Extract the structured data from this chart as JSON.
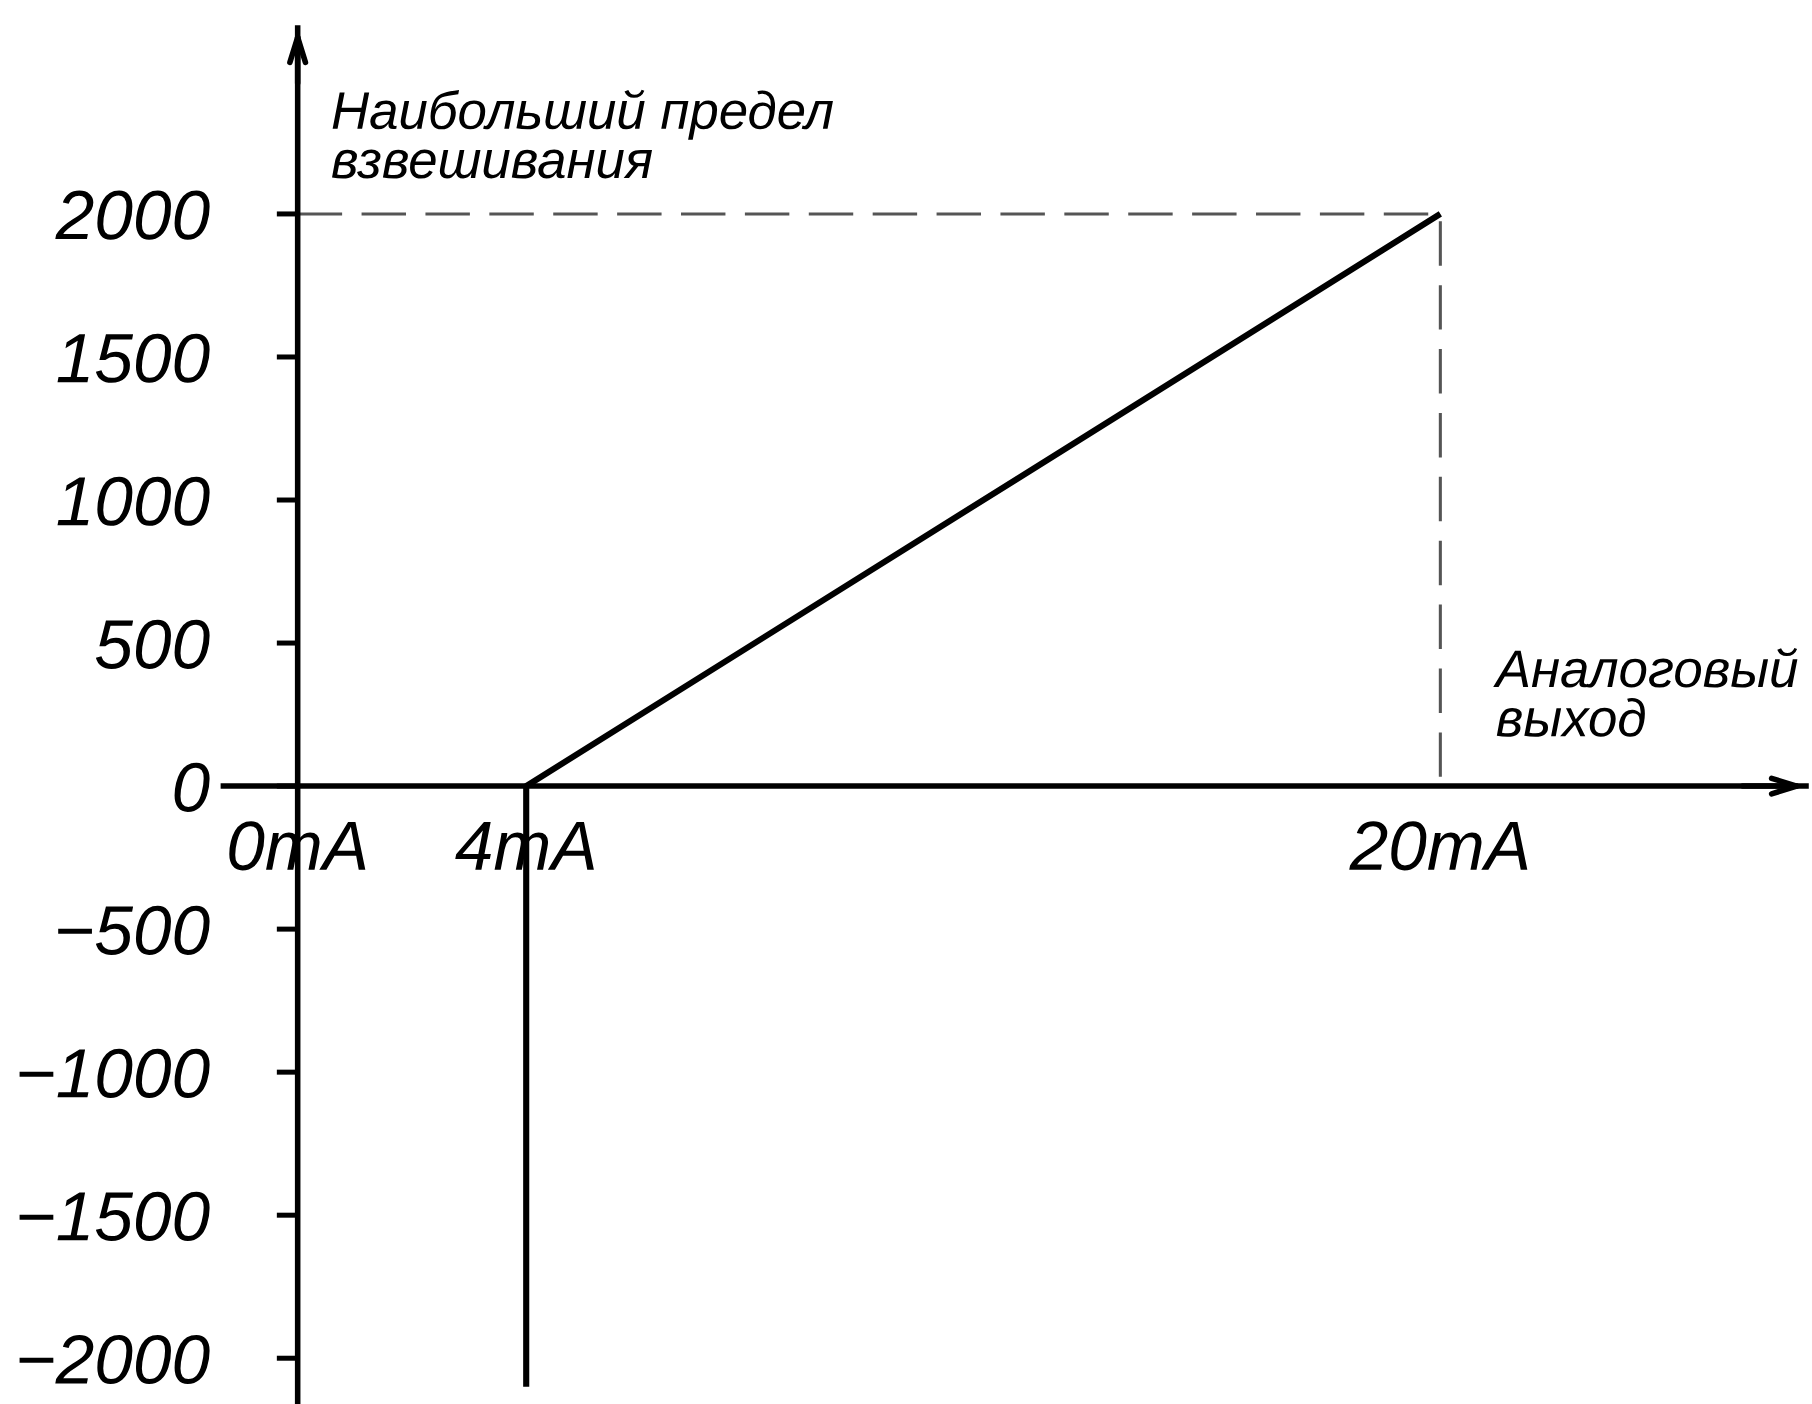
{
  "chart_data": {
    "type": "line",
    "xlabel": "Аналоговый\nвыход",
    "annotations": [
      {
        "text": "Наибольший предел\nвзвешивания",
        "x": 0,
        "y": 2000
      }
    ],
    "series": [
      {
        "x": [
          4,
          4,
          20
        ],
        "values": [
          -2100,
          0,
          2000
        ],
        "color": "#000000",
        "line_style": "solid"
      },
      {
        "x": [
          0,
          20,
          20
        ],
        "values": [
          2000,
          2000,
          0
        ],
        "color": "#555555",
        "line_style": "dashed"
      }
    ],
    "xlim": [
      -1.3,
      26.4
    ],
    "ylim": [
      -2160,
      2650
    ],
    "xticks": [
      {
        "value": 0,
        "label": "0mA"
      },
      {
        "value": 4,
        "label": "4mA"
      },
      {
        "value": 20,
        "label": "20mA"
      }
    ],
    "yticks": [
      -2000,
      -1500,
      -1000,
      -500,
      0,
      500,
      1000,
      1500,
      2000
    ],
    "grid": false,
    "marker": "none"
  }
}
